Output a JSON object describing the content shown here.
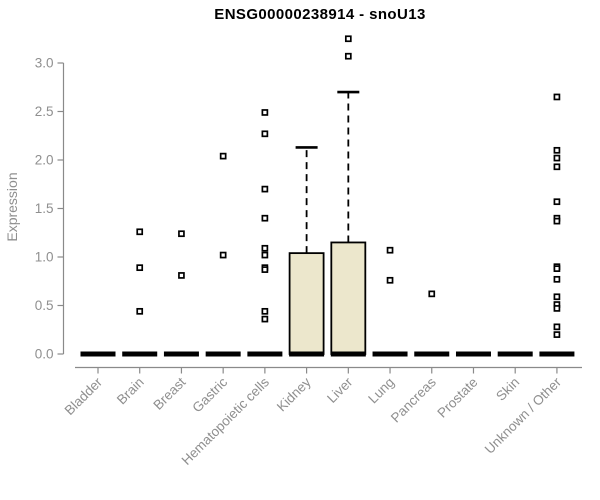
{
  "chart_data": {
    "type": "boxplot",
    "title": "ENSG00000238914 - snoU13",
    "ylabel": "Expression",
    "xlabel": "",
    "ylim": [
      0.0,
      3.3
    ],
    "yticks": [
      0.0,
      0.5,
      1.0,
      1.5,
      2.0,
      2.5,
      3.0
    ],
    "grid": false,
    "legend": "none",
    "categories": [
      "Bladder",
      "Brain",
      "Breast",
      "Gastric",
      "Hematopoietic cells",
      "Kidney",
      "Liver",
      "Lung",
      "Pancreas",
      "Prostate",
      "Skin",
      "Unknown / Other"
    ],
    "boxes": [
      {
        "category": "Bladder",
        "median": 0,
        "q1": 0,
        "q3": 0,
        "whisker_low": 0,
        "whisker_high": 0,
        "outliers": []
      },
      {
        "category": "Brain",
        "median": 0,
        "q1": 0,
        "q3": 0,
        "whisker_low": 0,
        "whisker_high": 0,
        "outliers": [
          1.26,
          0.89,
          0.44
        ]
      },
      {
        "category": "Breast",
        "median": 0,
        "q1": 0,
        "q3": 0,
        "whisker_low": 0,
        "whisker_high": 0,
        "outliers": [
          1.24,
          0.81
        ]
      },
      {
        "category": "Gastric",
        "median": 0,
        "q1": 0,
        "q3": 0,
        "whisker_low": 0,
        "whisker_high": 0,
        "outliers": [
          2.04,
          1.02
        ]
      },
      {
        "category": "Hematopoietic cells",
        "median": 0,
        "q1": 0,
        "q3": 0,
        "whisker_low": 0,
        "whisker_high": 0,
        "outliers": [
          2.49,
          2.27,
          1.7,
          1.4,
          1.09,
          1.02,
          0.89,
          0.87,
          0.44,
          0.36
        ]
      },
      {
        "category": "Kidney",
        "median": 0,
        "q1": 0,
        "q3": 1.04,
        "whisker_low": 0,
        "whisker_high": 2.13,
        "outliers": []
      },
      {
        "category": "Liver",
        "median": 0,
        "q1": 0,
        "q3": 1.15,
        "whisker_low": 0,
        "whisker_high": 2.7,
        "outliers": [
          3.25,
          3.07
        ]
      },
      {
        "category": "Lung",
        "median": 0,
        "q1": 0,
        "q3": 0,
        "whisker_low": 0,
        "whisker_high": 0,
        "outliers": [
          1.07,
          0.76
        ]
      },
      {
        "category": "Pancreas",
        "median": 0,
        "q1": 0,
        "q3": 0,
        "whisker_low": 0,
        "whisker_high": 0,
        "outliers": [
          0.62
        ]
      },
      {
        "category": "Prostate",
        "median": 0,
        "q1": 0,
        "q3": 0,
        "whisker_low": 0,
        "whisker_high": 0,
        "outliers": []
      },
      {
        "category": "Skin",
        "median": 0,
        "q1": 0,
        "q3": 0,
        "whisker_low": 0,
        "whisker_high": 0,
        "outliers": []
      },
      {
        "category": "Unknown / Other",
        "median": 0,
        "q1": 0,
        "q3": 0,
        "whisker_low": 0,
        "whisker_high": 0,
        "outliers": [
          2.65,
          2.1,
          2.02,
          1.93,
          1.57,
          1.4,
          1.37,
          0.9,
          0.88,
          0.77,
          0.59,
          0.51,
          0.47,
          0.28,
          0.2
        ]
      }
    ],
    "colors": {
      "box_fill": "#ECE7CC",
      "box_stroke": "#000000",
      "median": "#000000",
      "outlier_fill": "#FFFFFF",
      "outlier_stroke": "#000000",
      "axis": "#8A8A8A",
      "tick_text": "#8F8F8F",
      "title_text": "#000000"
    }
  }
}
